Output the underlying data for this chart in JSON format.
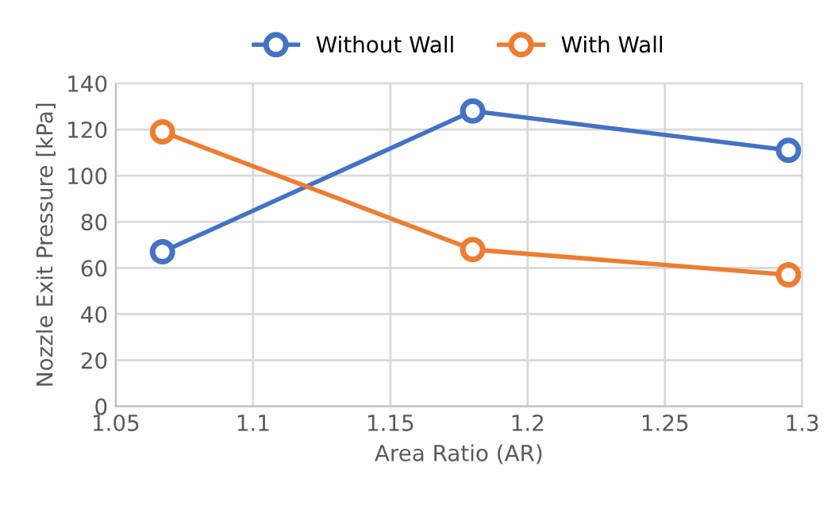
{
  "chart_data": {
    "type": "line",
    "xlabel": "Area Ratio (AR)",
    "ylabel": "Nozzle Exit Pressure [kPa]",
    "series": [
      {
        "name": "Without Wall",
        "color": "#4472c4",
        "x": [
          1.067,
          1.18,
          1.295
        ],
        "values": [
          67,
          128,
          111
        ]
      },
      {
        "name": "With Wall",
        "color": "#ed7d31",
        "x": [
          1.067,
          1.18,
          1.295
        ],
        "values": [
          119,
          68,
          57
        ]
      }
    ],
    "xlim": [
      1.05,
      1.3
    ],
    "xticks": [
      1.05,
      1.1,
      1.15,
      1.2,
      1.25,
      1.3
    ],
    "ylim": [
      0,
      140
    ],
    "yticks": [
      0,
      20,
      40,
      60,
      80,
      100,
      120,
      140
    ],
    "grid": true,
    "legend": "top",
    "marker": "circle",
    "line_style": "solid"
  }
}
